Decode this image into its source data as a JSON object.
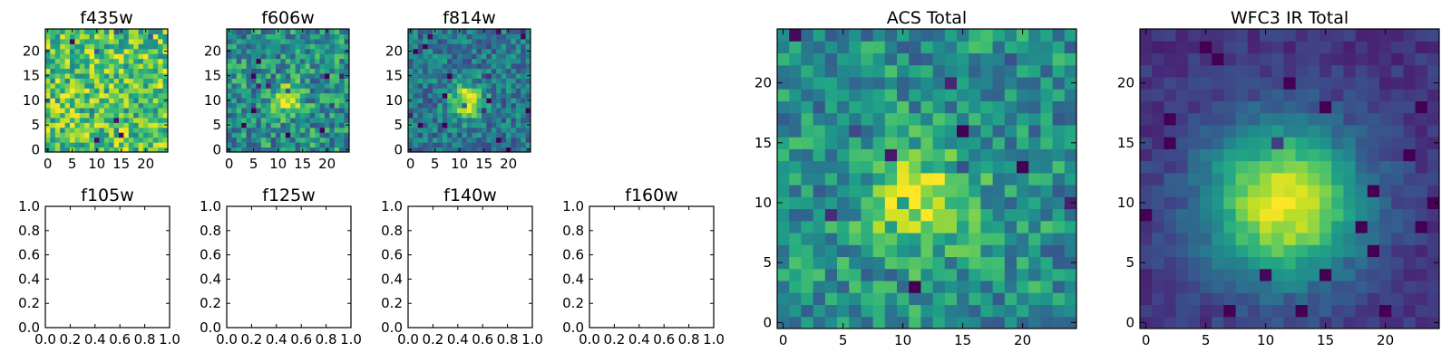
{
  "chart_data": [
    {
      "id": "f435w",
      "type": "heatmap",
      "title": "f435w",
      "grid_size": 25,
      "colormap": "viridis",
      "xticks": [
        "0",
        "5",
        "10",
        "15",
        "20"
      ],
      "yticks": [
        "0",
        "5",
        "10",
        "15",
        "20"
      ],
      "field": {
        "base": 0.72,
        "noise": 0.28,
        "peak": 0.0,
        "sigma": 3.5,
        "cx": 12,
        "cy": 10,
        "seed": 11
      }
    },
    {
      "id": "f606w",
      "type": "heatmap",
      "title": "f606w",
      "grid_size": 25,
      "colormap": "viridis",
      "xticks": [
        "0",
        "5",
        "10",
        "15",
        "20"
      ],
      "yticks": [
        "0",
        "5",
        "10",
        "15",
        "20"
      ],
      "field": {
        "base": 0.5,
        "noise": 0.26,
        "peak": 0.42,
        "sigma": 2.3,
        "cx": 11.5,
        "cy": 10,
        "seed": 23
      }
    },
    {
      "id": "f814w",
      "type": "heatmap",
      "title": "f814w",
      "grid_size": 25,
      "colormap": "viridis",
      "xticks": [
        "0",
        "5",
        "10",
        "15",
        "20"
      ],
      "yticks": [
        "0",
        "5",
        "10",
        "15",
        "20"
      ],
      "field": {
        "base": 0.4,
        "noise": 0.2,
        "peak": 0.58,
        "sigma": 2.4,
        "cx": 11.5,
        "cy": 10,
        "seed": 37
      }
    },
    {
      "id": "f105w",
      "type": "empty",
      "title": "f105w",
      "xticks": [
        "0.0",
        "0.2",
        "0.4",
        "0.6",
        "0.8",
        "1.0"
      ],
      "yticks": [
        "0.0",
        "0.2",
        "0.4",
        "0.6",
        "0.8",
        "1.0"
      ]
    },
    {
      "id": "f125w",
      "type": "empty",
      "title": "f125w",
      "xticks": [
        "0.0",
        "0.2",
        "0.4",
        "0.6",
        "0.8",
        "1.0"
      ],
      "yticks": [
        "0.0",
        "0.2",
        "0.4",
        "0.6",
        "0.8",
        "1.0"
      ]
    },
    {
      "id": "f140w",
      "type": "empty",
      "title": "f140w",
      "xticks": [
        "0.0",
        "0.2",
        "0.4",
        "0.6",
        "0.8",
        "1.0"
      ],
      "yticks": [
        "0.0",
        "0.2",
        "0.4",
        "0.6",
        "0.8",
        "1.0"
      ]
    },
    {
      "id": "f160w",
      "type": "empty",
      "title": "f160w",
      "xticks": [
        "0.0",
        "0.2",
        "0.4",
        "0.6",
        "0.8",
        "1.0"
      ],
      "yticks": [
        "0.0",
        "0.2",
        "0.4",
        "0.6",
        "0.8",
        "1.0"
      ]
    },
    {
      "id": "acs-total",
      "type": "heatmap",
      "title": "ACS Total",
      "grid_size": 25,
      "colormap": "viridis",
      "xticks": [
        "0",
        "5",
        "10",
        "15",
        "20"
      ],
      "yticks": [
        "0",
        "5",
        "10",
        "15",
        "20"
      ],
      "field": {
        "base": 0.5,
        "noise": 0.22,
        "peak": 0.45,
        "sigma": 3.0,
        "cx": 11.5,
        "cy": 10,
        "seed": 53
      }
    },
    {
      "id": "wfc3-ir-total",
      "type": "heatmap",
      "title": "WFC3 IR Total",
      "grid_size": 25,
      "colormap": "viridis",
      "xticks": [
        "0",
        "5",
        "10",
        "15",
        "20"
      ],
      "yticks": [
        "0",
        "5",
        "10",
        "15",
        "20"
      ],
      "field": {
        "base": 0.15,
        "noise": 0.07,
        "peak": 0.82,
        "sigma": 4.6,
        "cx": 11.5,
        "cy": 10,
        "seed": 71
      }
    }
  ]
}
